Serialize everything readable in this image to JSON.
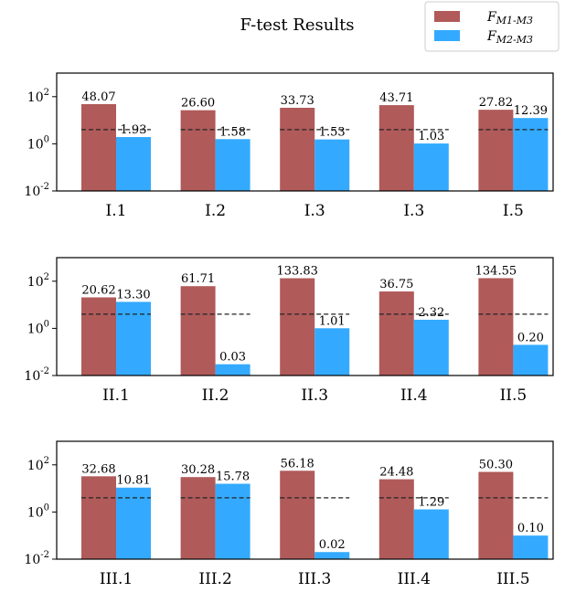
{
  "chart_data": {
    "type": "bar",
    "title": "F-test Results",
    "yscale": "log",
    "ylim": [
      0.01,
      1000
    ],
    "yticks": [
      "10^2",
      "10^0",
      "10^-2"
    ],
    "threshold": 4.0,
    "colors": {
      "F_M1_M3": "#b05a5a",
      "F_M2_M3": "#33aaff"
    },
    "legend": {
      "position": "top-right",
      "entries": [
        {
          "base": "F",
          "sub": "M1-M3",
          "color": "#b05a5a"
        },
        {
          "base": "F",
          "sub": "M2-M3",
          "color": "#33aaff"
        }
      ]
    },
    "panels": [
      {
        "categories": [
          "I.1",
          "I.2",
          "I.3",
          "I.3",
          "I.5"
        ],
        "series": [
          {
            "name": "F_M1-M3",
            "values": [
              48.07,
              26.6,
              33.73,
              43.71,
              27.82
            ],
            "labels": [
              "48.07",
              "26.60",
              "33.73",
              "43.71",
              "27.82"
            ]
          },
          {
            "name": "F_M2-M3",
            "values": [
              1.93,
              1.58,
              1.53,
              1.03,
              12.39
            ],
            "labels": [
              "1.93",
              "1.58",
              "1.53",
              "1.03",
              "12.39"
            ]
          }
        ]
      },
      {
        "categories": [
          "II.1",
          "II.2",
          "II.3",
          "II.4",
          "II.5"
        ],
        "series": [
          {
            "name": "F_M1-M3",
            "values": [
              20.62,
              61.71,
              133.83,
              36.75,
              134.55
            ],
            "labels": [
              "20.62",
              "61.71",
              "133.83",
              "36.75",
              "134.55"
            ]
          },
          {
            "name": "F_M2-M3",
            "values": [
              13.3,
              0.03,
              1.01,
              2.32,
              0.2
            ],
            "labels": [
              "13.30",
              "0.03",
              "1.01",
              "2.32",
              "0.20"
            ]
          }
        ]
      },
      {
        "categories": [
          "III.1",
          "III.2",
          "III.3",
          "III.4",
          "III.5"
        ],
        "series": [
          {
            "name": "F_M1-M3",
            "values": [
              32.68,
              30.28,
              56.18,
              24.48,
              50.3
            ],
            "labels": [
              "32.68",
              "30.28",
              "56.18",
              "24.48",
              "50.30"
            ]
          },
          {
            "name": "F_M2-M3",
            "values": [
              10.81,
              15.78,
              0.02,
              1.29,
              0.1
            ],
            "labels": [
              "10.81",
              "15.78",
              "0.02",
              "1.29",
              "0.10"
            ]
          }
        ]
      }
    ]
  }
}
